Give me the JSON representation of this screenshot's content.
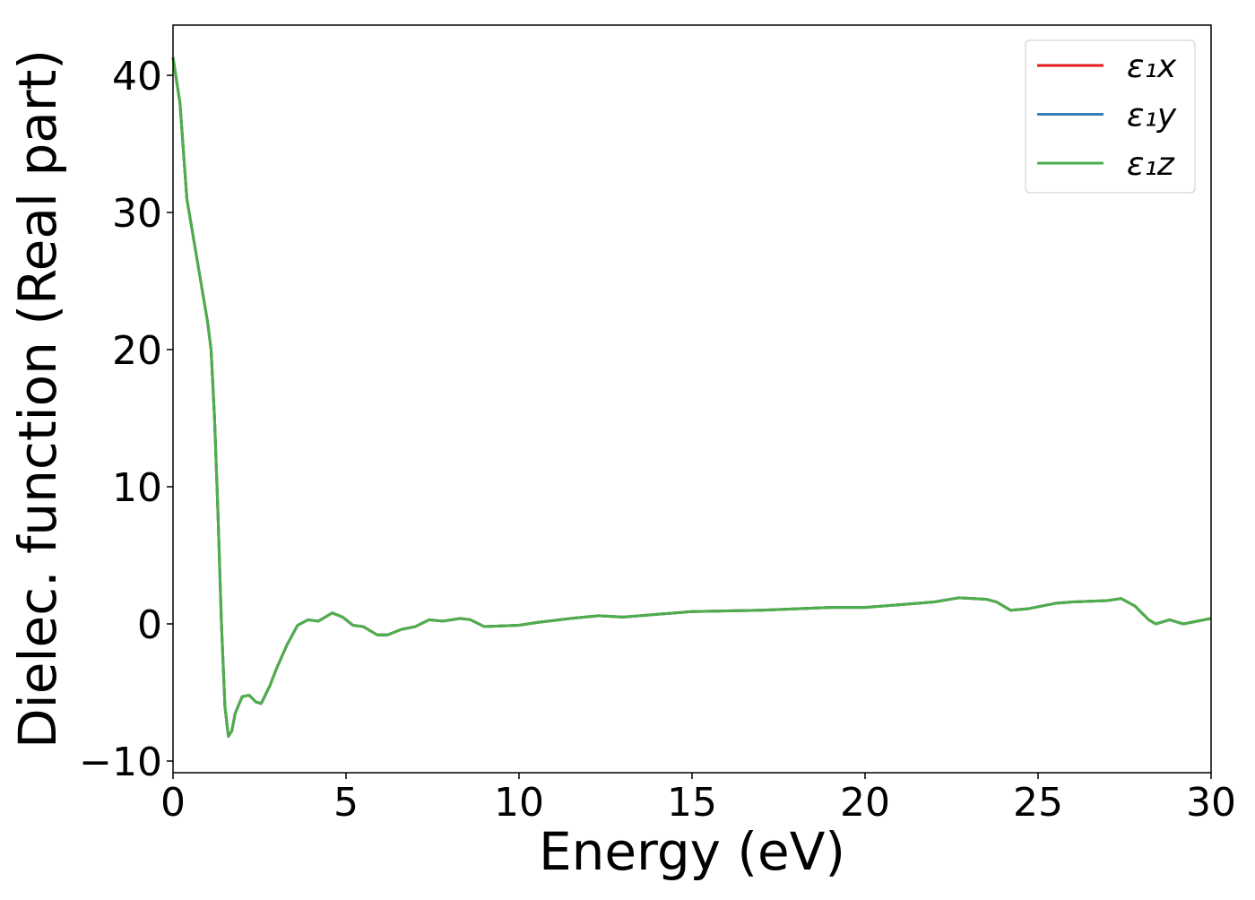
{
  "chart_data": {
    "type": "line",
    "xlabel": "Energy (eV)",
    "ylabel": "Dielec. function (Real part)",
    "x": [
      0,
      0.2,
      0.4,
      0.6,
      0.8,
      1.0,
      1.1,
      1.2,
      1.3,
      1.4,
      1.5,
      1.6,
      1.7,
      1.8,
      2.0,
      2.2,
      2.4,
      2.55,
      2.8,
      3.0,
      3.3,
      3.6,
      3.9,
      4.2,
      4.6,
      4.9,
      5.2,
      5.5,
      5.9,
      6.2,
      6.6,
      7.0,
      7.4,
      7.8,
      8.3,
      8.6,
      9.0,
      10,
      10.5,
      11.5,
      12.3,
      13.0,
      13.5,
      14,
      15,
      17,
      19,
      20,
      21,
      22,
      22.7,
      23.5,
      23.8,
      24.2,
      24.7,
      25.5,
      26,
      27,
      27.4,
      27.8,
      28.2,
      28.4,
      28.8,
      29.2,
      30
    ],
    "series": [
      {
        "name": "ε₁x",
        "color": "#e41a1c",
        "values": [
          41.3,
          38,
          31,
          28,
          25,
          22,
          20,
          15,
          8,
          0,
          -6,
          -8.2,
          -7.8,
          -6.5,
          -5.3,
          -5.2,
          -5.7,
          -5.8,
          -4.5,
          -3.2,
          -1.5,
          -0.1,
          0.3,
          0.2,
          0.8,
          0.5,
          -0.1,
          -0.2,
          -0.8,
          -0.8,
          -0.4,
          -0.2,
          0.3,
          0.2,
          0.4,
          0.3,
          -0.2,
          -0.1,
          0.1,
          0.4,
          0.6,
          0.5,
          0.6,
          0.7,
          0.9,
          1.0,
          1.2,
          1.2,
          1.4,
          1.6,
          1.9,
          1.8,
          1.6,
          1.0,
          1.1,
          1.5,
          1.6,
          1.7,
          1.85,
          1.3,
          0.3,
          0,
          0.3,
          0,
          0.4
        ]
      },
      {
        "name": "ε₁y",
        "color": "#377eb8",
        "values": [
          41.3,
          38,
          31,
          28,
          25,
          22,
          20,
          15,
          8,
          0,
          -6,
          -8.2,
          -7.8,
          -6.5,
          -5.3,
          -5.2,
          -5.7,
          -5.8,
          -4.5,
          -3.2,
          -1.5,
          -0.1,
          0.3,
          0.2,
          0.8,
          0.5,
          -0.1,
          -0.2,
          -0.8,
          -0.8,
          -0.4,
          -0.2,
          0.3,
          0.2,
          0.4,
          0.3,
          -0.2,
          -0.1,
          0.1,
          0.4,
          0.6,
          0.5,
          0.6,
          0.7,
          0.9,
          1.0,
          1.2,
          1.2,
          1.4,
          1.6,
          1.9,
          1.8,
          1.6,
          1.0,
          1.1,
          1.5,
          1.6,
          1.7,
          1.85,
          1.3,
          0.3,
          0,
          0.3,
          0,
          0.4
        ]
      },
      {
        "name": "ε₁z",
        "color": "#4daf4a",
        "values": [
          41.3,
          38,
          31,
          28,
          25,
          22,
          20,
          15,
          8,
          0,
          -6,
          -8.2,
          -7.8,
          -6.5,
          -5.3,
          -5.2,
          -5.7,
          -5.8,
          -4.5,
          -3.2,
          -1.5,
          -0.1,
          0.3,
          0.2,
          0.8,
          0.5,
          -0.1,
          -0.2,
          -0.8,
          -0.8,
          -0.4,
          -0.2,
          0.3,
          0.2,
          0.4,
          0.3,
          -0.2,
          -0.1,
          0.1,
          0.4,
          0.6,
          0.5,
          0.6,
          0.7,
          0.9,
          1.0,
          1.2,
          1.2,
          1.4,
          1.6,
          1.9,
          1.8,
          1.6,
          1.0,
          1.1,
          1.5,
          1.6,
          1.7,
          1.85,
          1.3,
          0.3,
          0,
          0.3,
          0,
          0.4
        ]
      }
    ],
    "xlim": [
      0,
      30
    ],
    "xticks": [
      0,
      5,
      10,
      15,
      20,
      25,
      30
    ],
    "ylim": [
      -10.85,
      43.66
    ],
    "yticks": [
      {
        "value": -10,
        "label": "−10"
      },
      0,
      10,
      20,
      30,
      40
    ],
    "legend": "upper right"
  }
}
